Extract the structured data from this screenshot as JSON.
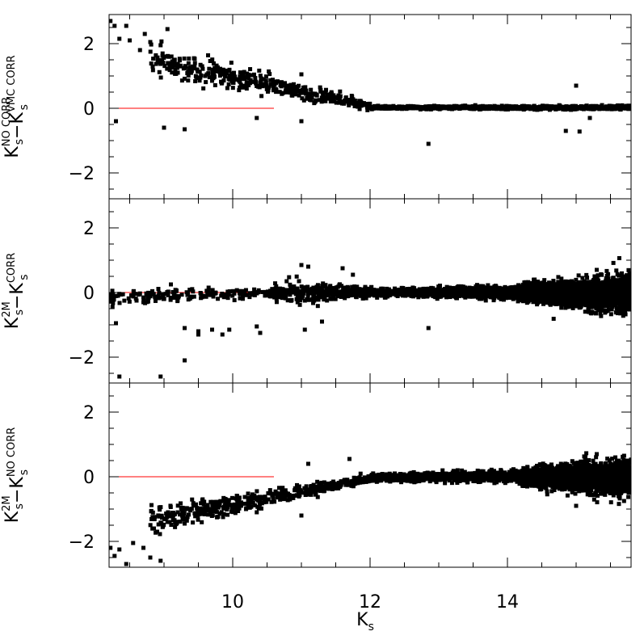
{
  "chart_data": {
    "type": "scatter",
    "layout": "three vertically stacked panels sharing the x axis",
    "xlabel": {
      "main": "K",
      "sub": "s"
    },
    "xlim": [
      8.2,
      15.8
    ],
    "x_ticks": [
      10,
      12,
      14
    ],
    "x_tick_labels": [
      "10",
      "12",
      "14"
    ],
    "panels": [
      {
        "ylabel": {
          "left": {
            "main": "K",
            "sup": "NO CORR",
            "sub": "s"
          },
          "op": "−",
          "right": {
            "main": "K",
            "sup": "VMC CORR",
            "sub": "s"
          }
        },
        "ylim": [
          -2.8,
          2.9
        ],
        "y_ticks": [
          -2,
          0,
          2
        ],
        "y_tick_labels": [
          "−2",
          "0",
          "2"
        ],
        "reference_line": {
          "y": 0,
          "x_range": [
            8.2,
            10.6
          ],
          "color": "#ff0000"
        },
        "points": [
          [
            8.22,
            2.7
          ],
          [
            8.28,
            2.55
          ],
          [
            8.35,
            2.15
          ],
          [
            8.45,
            2.55
          ],
          [
            8.5,
            2.1
          ],
          [
            8.65,
            1.8
          ],
          [
            8.72,
            2.3
          ],
          [
            8.8,
            2.05
          ],
          [
            8.95,
            1.95
          ],
          [
            9.05,
            2.45
          ],
          [
            9.12,
            1.45
          ],
          [
            9.2,
            1.3
          ],
          [
            9.3,
            1.25
          ],
          [
            9.35,
            1.15
          ],
          [
            9.45,
            1.4
          ],
          [
            9.6,
            1.0
          ],
          [
            9.7,
            0.85
          ],
          [
            9.85,
            1.05
          ],
          [
            10.0,
            0.9
          ],
          [
            10.2,
            0.75
          ],
          [
            10.4,
            0.8
          ],
          [
            10.6,
            0.6
          ],
          [
            10.8,
            0.5
          ],
          [
            11.0,
            1.05
          ],
          [
            11.2,
            0.45
          ],
          [
            11.45,
            0.3
          ],
          [
            11.7,
            0.22
          ],
          [
            11.9,
            0.1
          ],
          [
            8.3,
            -0.4
          ],
          [
            9.0,
            -0.6
          ],
          [
            9.3,
            -0.65
          ],
          [
            10.35,
            -0.3
          ],
          [
            11.0,
            -0.4
          ],
          [
            12.85,
            -1.1
          ],
          [
            14.85,
            -0.7
          ],
          [
            15.05,
            -0.72
          ],
          [
            15.0,
            0.7
          ],
          [
            15.2,
            -0.3
          ]
        ],
        "bands": [
          {
            "x": [
              8.8,
              12.0
            ],
            "center": [
              1.5,
              0.05
            ],
            "spread": [
              0.45,
              0.12
            ],
            "n": 420
          },
          {
            "x": [
              12.0,
              15.8
            ],
            "center": [
              0.02,
              0.02
            ],
            "spread": [
              0.035,
              0.05
            ],
            "n": 1100
          }
        ]
      },
      {
        "ylabel": {
          "left": {
            "main": "K",
            "sup": "2M",
            "sub": "s"
          },
          "op": "−",
          "right": {
            "main": "K",
            "sup": "CORR",
            "sub": "s"
          }
        },
        "ylim": [
          -2.8,
          2.9
        ],
        "y_ticks": [
          -2,
          0,
          2
        ],
        "y_tick_labels": [
          "−2",
          "0",
          "2"
        ],
        "reference_line": {
          "y": 0,
          "x_range": [
            8.2,
            10.6
          ],
          "color": "#ff0000"
        },
        "points": [
          [
            8.25,
            -0.45
          ],
          [
            8.3,
            -0.95
          ],
          [
            8.35,
            -2.6
          ],
          [
            8.6,
            -0.25
          ],
          [
            8.7,
            -0.3
          ],
          [
            8.95,
            -2.6
          ],
          [
            9.1,
            0.25
          ],
          [
            9.3,
            -2.1
          ],
          [
            9.3,
            -1.1
          ],
          [
            9.5,
            -1.2
          ],
          [
            9.5,
            -1.3
          ],
          [
            9.7,
            -1.15
          ],
          [
            9.85,
            -1.3
          ],
          [
            9.95,
            -1.15
          ],
          [
            10.35,
            -1.05
          ],
          [
            10.4,
            -1.25
          ],
          [
            11.0,
            0.85
          ],
          [
            11.05,
            -1.15
          ],
          [
            11.1,
            0.8
          ],
          [
            11.3,
            -0.9
          ],
          [
            11.6,
            0.75
          ],
          [
            11.75,
            0.55
          ],
          [
            12.85,
            -1.1
          ],
          [
            15.3,
            0.7
          ]
        ],
        "bands": [
          {
            "x": [
              8.2,
              10.6
            ],
            "center": [
              -0.15,
              -0.02
            ],
            "spread": [
              0.18,
              0.12
            ],
            "n": 180
          },
          {
            "x": [
              10.6,
              12.4
            ],
            "center": [
              0.0,
              0.0
            ],
            "spread": [
              0.28,
              0.12
            ],
            "n": 450
          },
          {
            "x": [
              12.4,
              14.2
            ],
            "center": [
              0.0,
              0.0
            ],
            "spread": [
              0.09,
              0.18
            ],
            "n": 1000
          },
          {
            "x": [
              14.2,
              15.8
            ],
            "center": [
              0.0,
              -0.05
            ],
            "spread": [
              0.22,
              0.5
            ],
            "n": 2300
          }
        ]
      },
      {
        "ylabel": {
          "left": {
            "main": "K",
            "sup": "2M",
            "sub": "s"
          },
          "op": "−",
          "right": {
            "main": "K",
            "sup": "NO CORR",
            "sub": "s"
          }
        },
        "ylim": [
          -2.8,
          2.9
        ],
        "y_ticks": [
          -2,
          0,
          2
        ],
        "y_tick_labels": [
          "−2",
          "0",
          "2"
        ],
        "reference_line": {
          "y": 0,
          "x_range": [
            8.2,
            10.6
          ],
          "color": "#ff0000"
        },
        "points": [
          [
            8.22,
            -2.2
          ],
          [
            8.28,
            -2.45
          ],
          [
            8.35,
            -2.25
          ],
          [
            8.45,
            -2.7
          ],
          [
            8.55,
            -2.05
          ],
          [
            8.7,
            -2.2
          ],
          [
            8.8,
            -2.5
          ],
          [
            8.9,
            -1.7
          ],
          [
            8.95,
            -2.6
          ],
          [
            9.05,
            -1.4
          ],
          [
            9.2,
            -1.1
          ],
          [
            9.3,
            -1.45
          ],
          [
            10.35,
            -1.1
          ],
          [
            11.0,
            -1.2
          ],
          [
            11.7,
            0.55
          ],
          [
            11.1,
            0.4
          ],
          [
            15.3,
            0.7
          ],
          [
            15.0,
            -0.9
          ]
        ],
        "bands": [
          {
            "x": [
              8.8,
              12.0
            ],
            "center": [
              -1.35,
              -0.05
            ],
            "spread": [
              0.35,
              0.1
            ],
            "n": 480
          },
          {
            "x": [
              12.0,
              14.2
            ],
            "center": [
              -0.02,
              0.0
            ],
            "spread": [
              0.08,
              0.16
            ],
            "n": 1000
          },
          {
            "x": [
              14.2,
              15.8
            ],
            "center": [
              0.0,
              -0.05
            ],
            "spread": [
              0.22,
              0.5
            ],
            "n": 2300
          }
        ]
      }
    ]
  }
}
